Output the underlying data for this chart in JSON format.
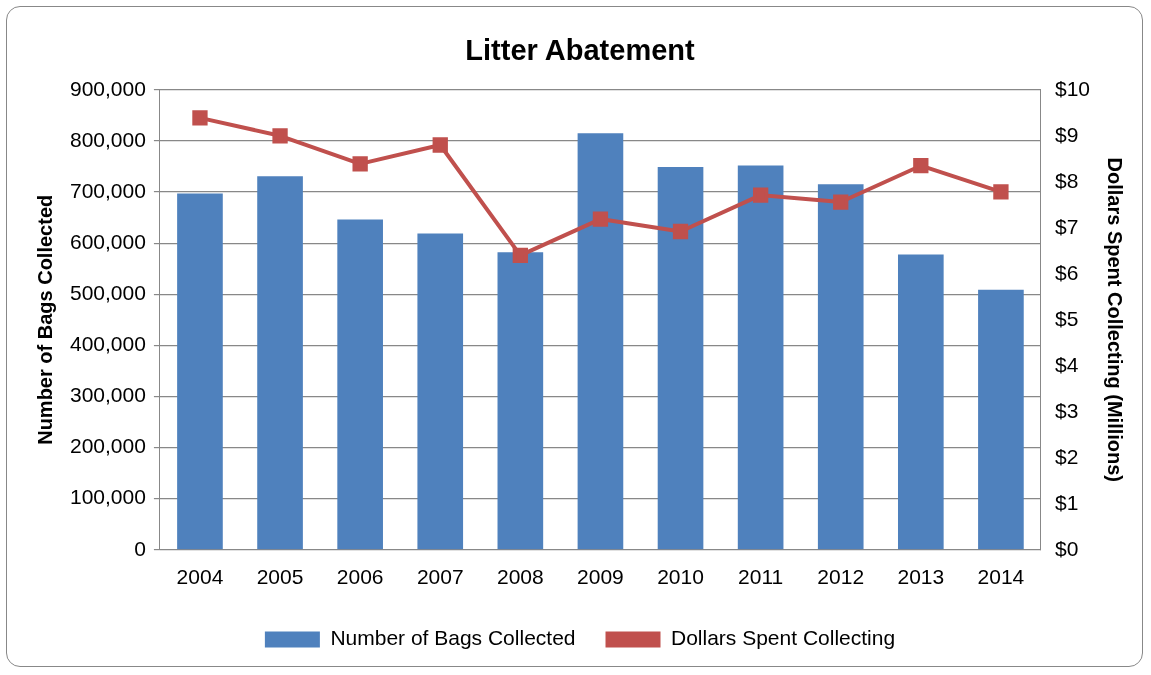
{
  "chart_data": {
    "type": "bar",
    "title": "Litter Abatement",
    "ylabel": "Number of Bags Collected",
    "y2label": "Dollars Spent Collecting (Millions)",
    "categories": [
      "2004",
      "2005",
      "2006",
      "2007",
      "2008",
      "2009",
      "2010",
      "2011",
      "2012",
      "2013",
      "2014"
    ],
    "series": [
      {
        "name": "Number of Bags Collected",
        "color": "#4f81bd",
        "values": [
          697000,
          731000,
          646000,
          619000,
          582000,
          815000,
          749000,
          752000,
          715000,
          578000,
          509000
        ]
      },
      {
        "name": "Dollars Spent Collecting",
        "type": "line",
        "axis": "y2",
        "color": "#c0504d",
        "marker": "square",
        "values": [
          9.39,
          9.0,
          8.39,
          8.8,
          6.4,
          7.19,
          6.92,
          7.71,
          7.56,
          8.35,
          7.78
        ]
      }
    ],
    "ylim": [
      0,
      900000
    ],
    "yticks": [
      {
        "value": 0,
        "label": "0"
      },
      {
        "value": 100000,
        "label": "100,000"
      },
      {
        "value": 200000,
        "label": "200,000"
      },
      {
        "value": 300000,
        "label": "300,000"
      },
      {
        "value": 400000,
        "label": "400,000"
      },
      {
        "value": 500000,
        "label": "500,000"
      },
      {
        "value": 600000,
        "label": "600,000"
      },
      {
        "value": 700000,
        "label": "700,000"
      },
      {
        "value": 800000,
        "label": "800,000"
      },
      {
        "value": 900000,
        "label": "900,000"
      }
    ],
    "y2lim": [
      0,
      10
    ],
    "y2ticks": [
      {
        "value": 0,
        "label": "$0"
      },
      {
        "value": 1,
        "label": "$1"
      },
      {
        "value": 2,
        "label": "$2"
      },
      {
        "value": 3,
        "label": "$3"
      },
      {
        "value": 4,
        "label": "$4"
      },
      {
        "value": 5,
        "label": "$5"
      },
      {
        "value": 6,
        "label": "$6"
      },
      {
        "value": 7,
        "label": "$7"
      },
      {
        "value": 8,
        "label": "$8"
      },
      {
        "value": 9,
        "label": "$9"
      },
      {
        "value": 10,
        "label": "$10"
      }
    ],
    "grid": "y",
    "legend": "bottom"
  }
}
